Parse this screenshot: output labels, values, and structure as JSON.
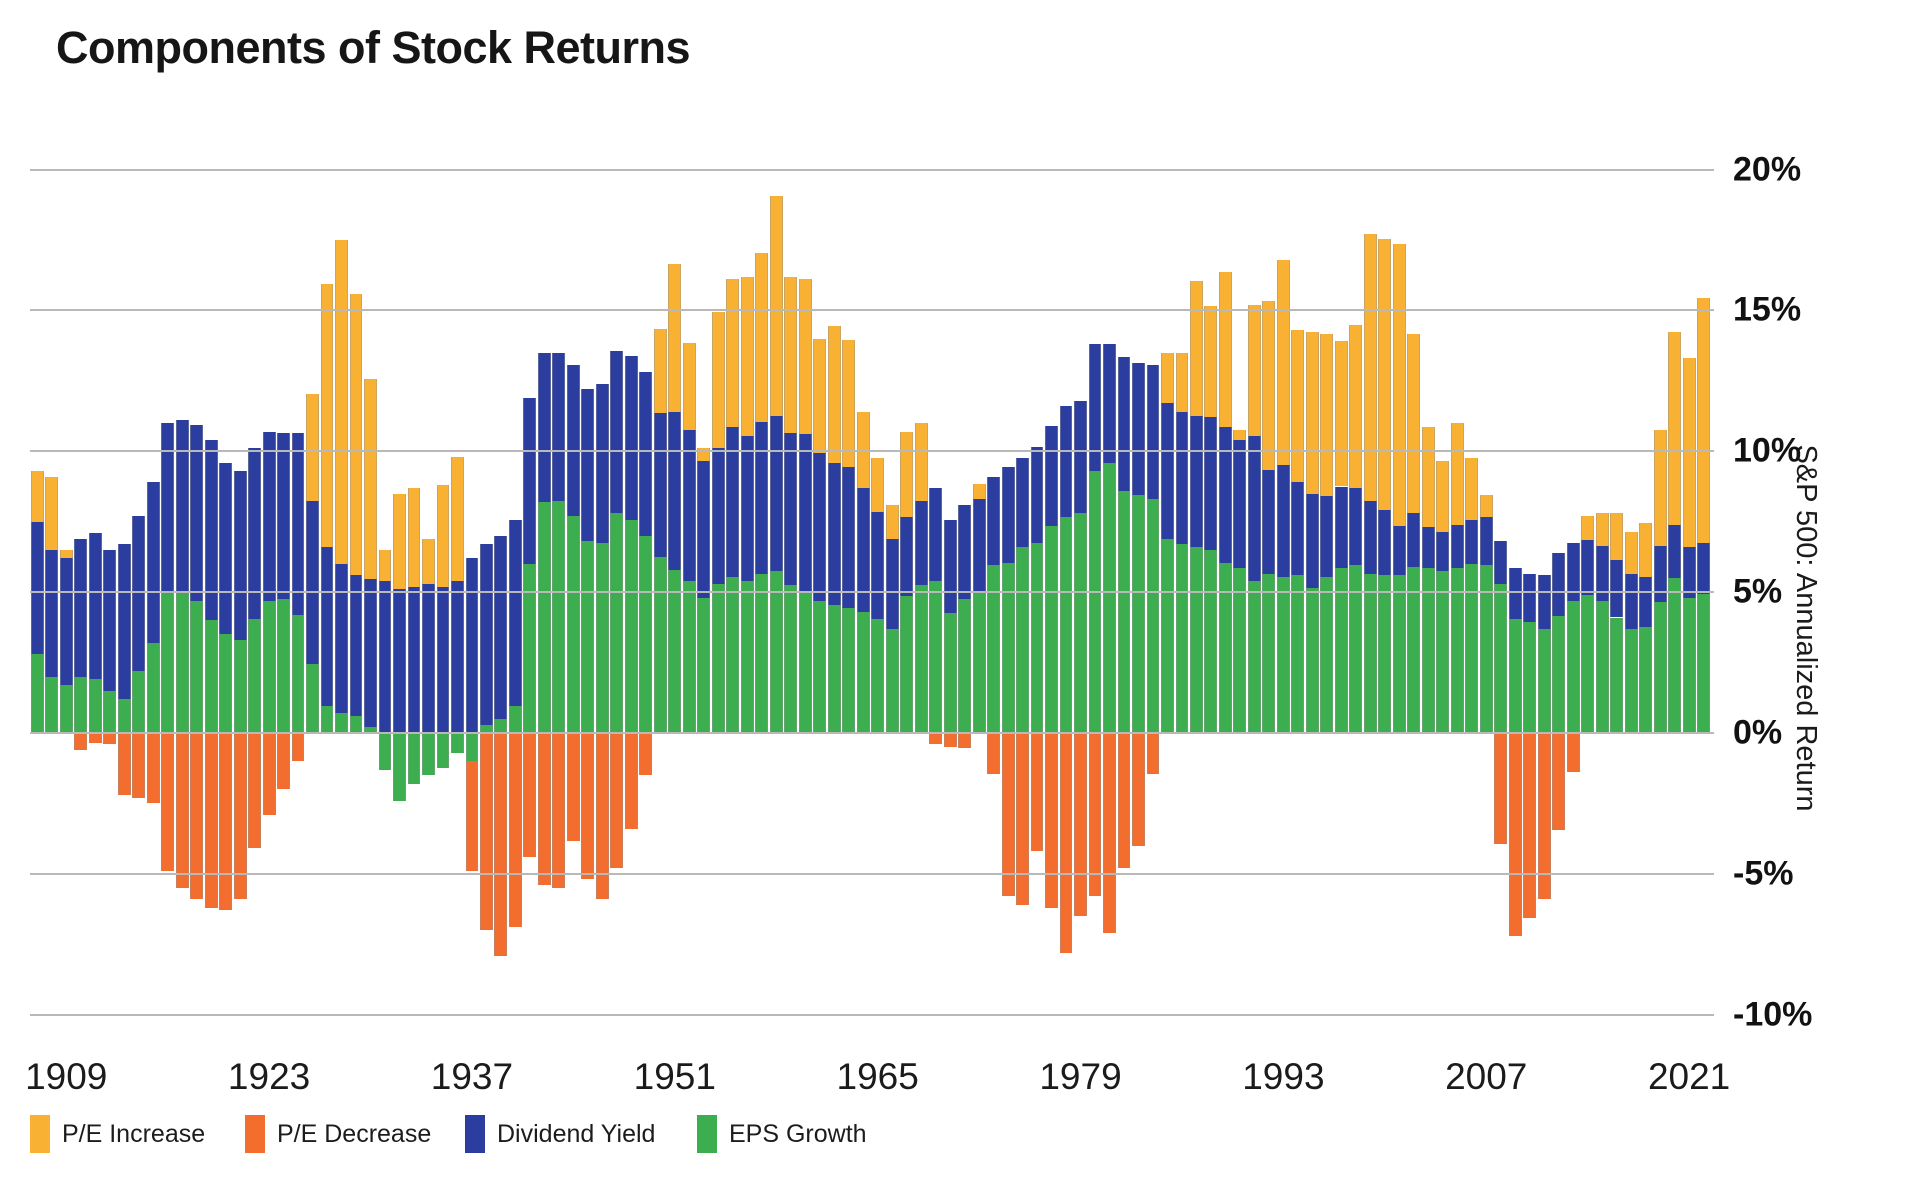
{
  "title": "Components of Stock Returns",
  "colors": {
    "pe_increase": "#F8B133",
    "pe_decrease": "#F26D2E",
    "dividend_yield": "#2B3E9F",
    "eps_growth": "#3CAE4F",
    "gridline": "#B9B9B9",
    "text": "#1B1B1B"
  },
  "y_axis": {
    "title": "S&P 500: Annualized Return",
    "ticks": [
      {
        "v": 20,
        "label": "20%"
      },
      {
        "v": 15,
        "label": "15%"
      },
      {
        "v": 10,
        "label": "10%"
      },
      {
        "v": 5,
        "label": "5%"
      },
      {
        "v": 0,
        "label": "0%"
      },
      {
        "v": -5,
        "label": "-5%"
      },
      {
        "v": -10,
        "label": "-10%"
      }
    ]
  },
  "x_axis": {
    "tick_years": [
      1909,
      1923,
      1937,
      1951,
      1965,
      1979,
      1993,
      2007,
      2021
    ]
  },
  "legend": [
    {
      "label": "P/E Increase",
      "color_key": "pe_increase"
    },
    {
      "label": "P/E Decrease",
      "color_key": "pe_decrease"
    },
    {
      "label": "Dividend Yield",
      "color_key": "dividend_yield"
    },
    {
      "label": "EPS Growth",
      "color_key": "eps_growth"
    }
  ],
  "chart_data": {
    "type": "bar",
    "stacked": true,
    "title": "Components of Stock Returns",
    "ylabel": "S&P 500: Annualized Return",
    "ylim": [
      -10,
      20
    ],
    "grid": true,
    "legend_position": "bottom",
    "units": "percent, annualized trailing 10-year return components",
    "stack_order_positive": [
      "eps",
      "div",
      "pe"
    ],
    "stack_order_negative": [
      "eps",
      "pe"
    ],
    "series_names": {
      "eps": "EPS Growth",
      "div": "Dividend Yield",
      "pe": "P/E Change (increase if positive, decrease if negative)"
    },
    "columns": [
      "year",
      "eps",
      "div",
      "pe"
    ],
    "bars": [
      [
        1907,
        2.8,
        4.7,
        1.8
      ],
      [
        1908,
        2.0,
        4.5,
        2.6
      ],
      [
        1909,
        1.7,
        4.5,
        0.3
      ],
      [
        1910,
        2.0,
        4.9,
        -0.6
      ],
      [
        1911,
        1.9,
        5.2,
        -0.35
      ],
      [
        1912,
        1.5,
        5.0,
        -0.4
      ],
      [
        1913,
        1.2,
        5.5,
        -2.2
      ],
      [
        1914,
        2.2,
        5.5,
        -2.3
      ],
      [
        1915,
        3.2,
        5.7,
        -2.5
      ],
      [
        1916,
        5.0,
        6.0,
        -4.9
      ],
      [
        1917,
        5.0,
        6.1,
        -5.5
      ],
      [
        1918,
        4.7,
        6.25,
        -5.9
      ],
      [
        1919,
        4.0,
        6.4,
        -6.2
      ],
      [
        1920,
        3.5,
        6.1,
        -6.3
      ],
      [
        1921,
        3.3,
        6.0,
        -5.9
      ],
      [
        1922,
        4.05,
        6.05,
        -4.1
      ],
      [
        1923,
        4.7,
        6.0,
        -2.9
      ],
      [
        1924,
        4.75,
        5.9,
        -2.0
      ],
      [
        1925,
        4.2,
        6.45,
        -1.0
      ],
      [
        1926,
        2.45,
        5.8,
        3.8
      ],
      [
        1927,
        0.95,
        5.65,
        9.35
      ],
      [
        1928,
        0.7,
        5.3,
        11.5
      ],
      [
        1929,
        0.6,
        5.0,
        10.0
      ],
      [
        1930,
        0.2,
        5.25,
        7.1
      ],
      [
        1931,
        -1.3,
        5.4,
        1.1
      ],
      [
        1932,
        -2.4,
        5.1,
        3.4
      ],
      [
        1933,
        -1.8,
        5.2,
        3.5
      ],
      [
        1934,
        -1.5,
        5.3,
        1.6
      ],
      [
        1935,
        -1.25,
        5.2,
        3.6
      ],
      [
        1936,
        -0.7,
        5.4,
        4.4
      ],
      [
        1937,
        -1.0,
        6.2,
        -3.9
      ],
      [
        1938,
        0.3,
        6.4,
        -7.0
      ],
      [
        1939,
        0.5,
        6.5,
        -7.9
      ],
      [
        1940,
        0.95,
        6.6,
        -6.9
      ],
      [
        1941,
        6.0,
        5.9,
        -4.4
      ],
      [
        1942,
        8.2,
        5.3,
        -5.4
      ],
      [
        1943,
        8.25,
        5.25,
        -5.5
      ],
      [
        1944,
        7.7,
        5.35,
        -3.85
      ],
      [
        1945,
        6.8,
        5.4,
        -5.2
      ],
      [
        1946,
        6.75,
        5.65,
        -5.9
      ],
      [
        1947,
        7.8,
        5.75,
        -4.8
      ],
      [
        1948,
        7.55,
        5.85,
        -3.4
      ],
      [
        1949,
        7.0,
        5.8,
        -1.5
      ],
      [
        1950,
        6.25,
        5.1,
        3.0
      ],
      [
        1951,
        5.8,
        5.6,
        5.25
      ],
      [
        1952,
        5.4,
        5.35,
        3.1
      ],
      [
        1953,
        4.8,
        4.85,
        0.45
      ],
      [
        1954,
        5.3,
        4.8,
        4.85
      ],
      [
        1955,
        5.55,
        5.3,
        5.25
      ],
      [
        1956,
        5.4,
        5.15,
        5.65
      ],
      [
        1957,
        5.65,
        5.4,
        6.0
      ],
      [
        1958,
        5.75,
        5.5,
        7.8
      ],
      [
        1959,
        5.25,
        5.4,
        5.55
      ],
      [
        1960,
        5.0,
        5.6,
        5.5
      ],
      [
        1961,
        4.7,
        5.25,
        4.05
      ],
      [
        1962,
        4.55,
        5.05,
        4.85
      ],
      [
        1963,
        4.45,
        5.0,
        4.5
      ],
      [
        1964,
        4.3,
        4.4,
        2.7
      ],
      [
        1965,
        4.05,
        3.8,
        1.9
      ],
      [
        1966,
        3.7,
        3.2,
        1.2
      ],
      [
        1967,
        4.85,
        2.8,
        3.05
      ],
      [
        1968,
        5.25,
        3.0,
        2.75
      ],
      [
        1969,
        5.4,
        3.3,
        -0.4
      ],
      [
        1970,
        4.25,
        3.3,
        -0.5
      ],
      [
        1971,
        4.75,
        3.35,
        -0.55
      ],
      [
        1972,
        5.0,
        3.3,
        0.55
      ],
      [
        1973,
        5.95,
        3.15,
        -1.45
      ],
      [
        1974,
        6.05,
        3.4,
        -5.8
      ],
      [
        1975,
        6.6,
        3.15,
        -6.1
      ],
      [
        1976,
        6.75,
        3.4,
        -4.2
      ],
      [
        1977,
        7.35,
        3.55,
        -6.2
      ],
      [
        1978,
        7.65,
        3.95,
        -7.8
      ],
      [
        1979,
        7.8,
        4.0,
        -6.5
      ],
      [
        1980,
        9.3,
        4.5,
        -5.8
      ],
      [
        1981,
        9.6,
        4.2,
        -7.1
      ],
      [
        1982,
        8.6,
        4.75,
        -4.8
      ],
      [
        1983,
        8.45,
        4.7,
        -4.0
      ],
      [
        1984,
        8.3,
        4.75,
        -1.45
      ],
      [
        1985,
        6.9,
        4.8,
        1.8
      ],
      [
        1986,
        6.7,
        4.7,
        2.1
      ],
      [
        1987,
        6.6,
        4.65,
        4.8
      ],
      [
        1988,
        6.5,
        4.7,
        3.95
      ],
      [
        1989,
        6.05,
        4.8,
        5.5
      ],
      [
        1990,
        5.85,
        4.55,
        0.35
      ],
      [
        1991,
        5.4,
        5.15,
        4.65
      ],
      [
        1992,
        5.65,
        3.7,
        6.0
      ],
      [
        1993,
        5.55,
        3.95,
        7.3
      ],
      [
        1994,
        5.6,
        3.3,
        5.4
      ],
      [
        1995,
        5.15,
        3.35,
        5.75
      ],
      [
        1996,
        5.55,
        2.85,
        5.75
      ],
      [
        1997,
        5.85,
        2.9,
        5.15
      ],
      [
        1998,
        5.95,
        2.75,
        5.8
      ],
      [
        1999,
        5.65,
        2.6,
        9.45
      ],
      [
        2000,
        5.6,
        2.3,
        9.65
      ],
      [
        2001,
        5.6,
        1.75,
        10.0
      ],
      [
        2002,
        5.9,
        1.9,
        6.35
      ],
      [
        2003,
        5.85,
        1.45,
        3.55
      ],
      [
        2004,
        5.75,
        1.4,
        2.5
      ],
      [
        2005,
        5.85,
        1.55,
        3.6
      ],
      [
        2006,
        6.0,
        1.55,
        2.2
      ],
      [
        2007,
        5.95,
        1.7,
        0.8
      ],
      [
        2008,
        5.3,
        1.5,
        -3.95
      ],
      [
        2009,
        4.05,
        1.8,
        -7.2
      ],
      [
        2010,
        3.95,
        1.7,
        -6.55
      ],
      [
        2011,
        3.7,
        1.9,
        -5.9
      ],
      [
        2012,
        4.15,
        2.25,
        -3.45
      ],
      [
        2013,
        4.7,
        2.05,
        -1.4
      ],
      [
        2014,
        4.9,
        1.95,
        0.85
      ],
      [
        2015,
        4.7,
        1.95,
        1.15
      ],
      [
        2016,
        4.1,
        2.05,
        1.65
      ],
      [
        2017,
        3.7,
        1.95,
        1.5
      ],
      [
        2018,
        3.75,
        1.8,
        1.9
      ],
      [
        2019,
        4.65,
        2.0,
        4.1
      ],
      [
        2020,
        5.5,
        1.9,
        6.85
      ],
      [
        2021,
        4.8,
        1.8,
        6.7
      ],
      [
        2022,
        4.95,
        1.8,
        8.7
      ]
    ]
  }
}
